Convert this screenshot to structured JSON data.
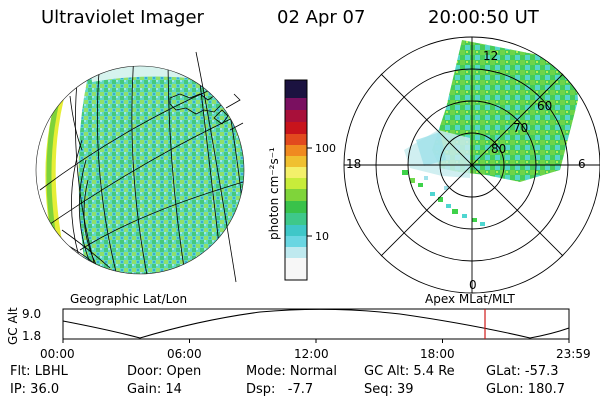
{
  "header": {
    "instrument": "Ultraviolet Imager",
    "date": "02 Apr 07",
    "time": "20:00:50 UT"
  },
  "colorbar": {
    "label": "photon cm⁻²s⁻¹",
    "ticks": [
      "100",
      "10"
    ]
  },
  "geo_panel": {
    "caption": "Geographic Lat/Lon"
  },
  "polar_panel": {
    "caption": "Apex MLat/MLT",
    "mlt_labels": {
      "top": "12",
      "left": "18",
      "right": "6",
      "bottom": "0"
    },
    "lat_labels": [
      "60",
      "70",
      "80"
    ]
  },
  "altitude_plot": {
    "label": "GC Alt",
    "ymax_label": "9.0",
    "ymin_label": "1.8",
    "time_labels": [
      "00:00",
      "06:00",
      "12:00",
      "18:00",
      "23:59"
    ],
    "current_time_fraction": 0.834
  },
  "status": {
    "col1": [
      "Flt: LBHL",
      "IP: 36.0"
    ],
    "col2": [
      "Door: Open",
      "Gain: 14"
    ],
    "col3": [
      "Mode: Normal",
      "Dsp:   -7.7"
    ],
    "col4": [
      "GC Alt: 5.4 Re",
      "Seq: 39"
    ],
    "col5": [
      "GLat: -57.3",
      "GLon: 180.7"
    ]
  },
  "colors": {
    "aurora_green": "#3ed24a",
    "aurora_cyan": "#4fd6d0",
    "highlight_yellow": "#e6ee36",
    "marker_red": "#d01818"
  }
}
